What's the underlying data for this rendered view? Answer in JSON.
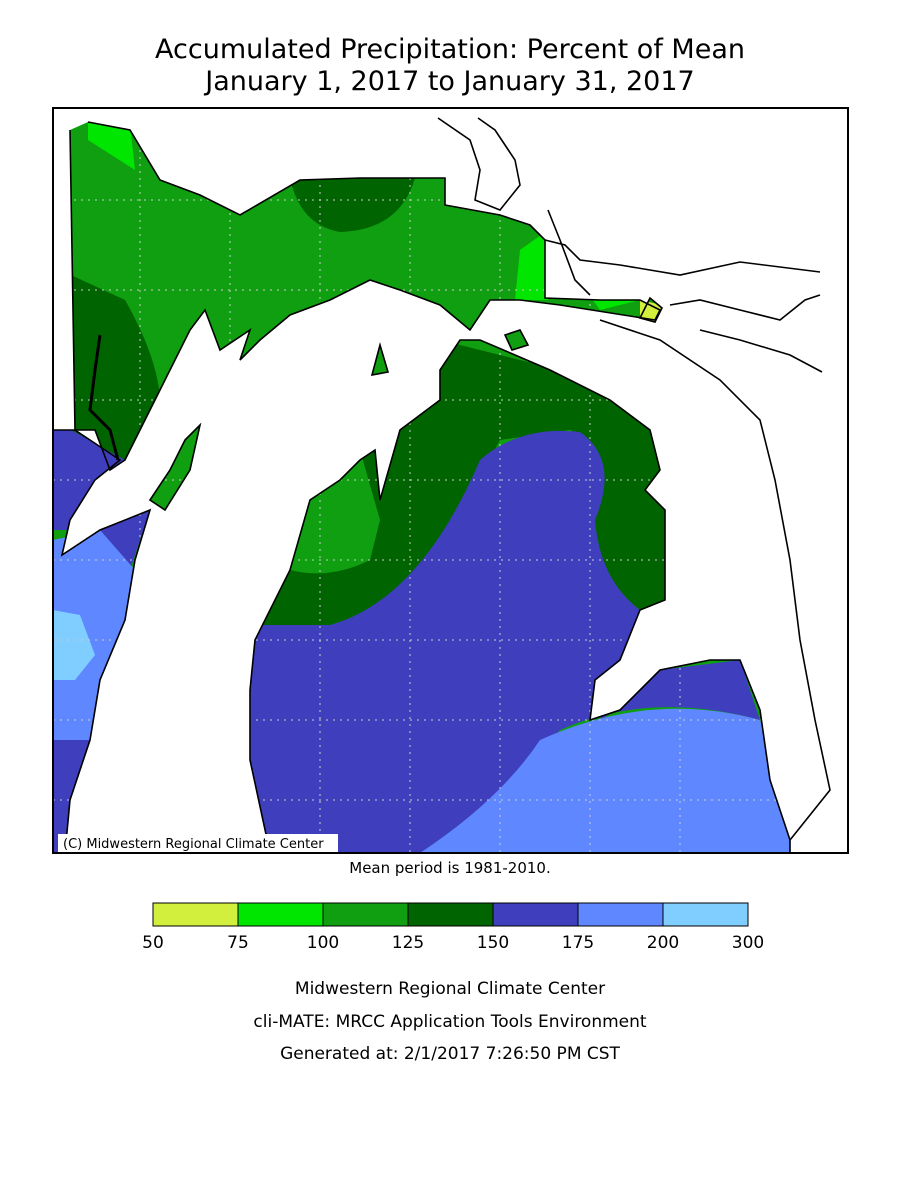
{
  "title": [
    "Accumulated Precipitation: Percent of Mean",
    "January 1, 2017 to January 31, 2017"
  ],
  "map": {
    "copyright": "(C) Midwestern Regional Climate Center"
  },
  "note": "Mean period is 1981-2010.",
  "legend": {
    "ticks": [
      50,
      75,
      100,
      125,
      150,
      175,
      200,
      300
    ],
    "colors": [
      "#d2ef3e",
      "#00e600",
      "#109f10",
      "#006400",
      "#3f3fbd",
      "#5f87ff",
      "#80cdff"
    ]
  },
  "footer": [
    "Midwestern Regional Climate Center",
    "cli-MATE: MRCC Application Tools Environment",
    "Generated at: 2/1/2017 7:26:50 PM CST"
  ]
}
